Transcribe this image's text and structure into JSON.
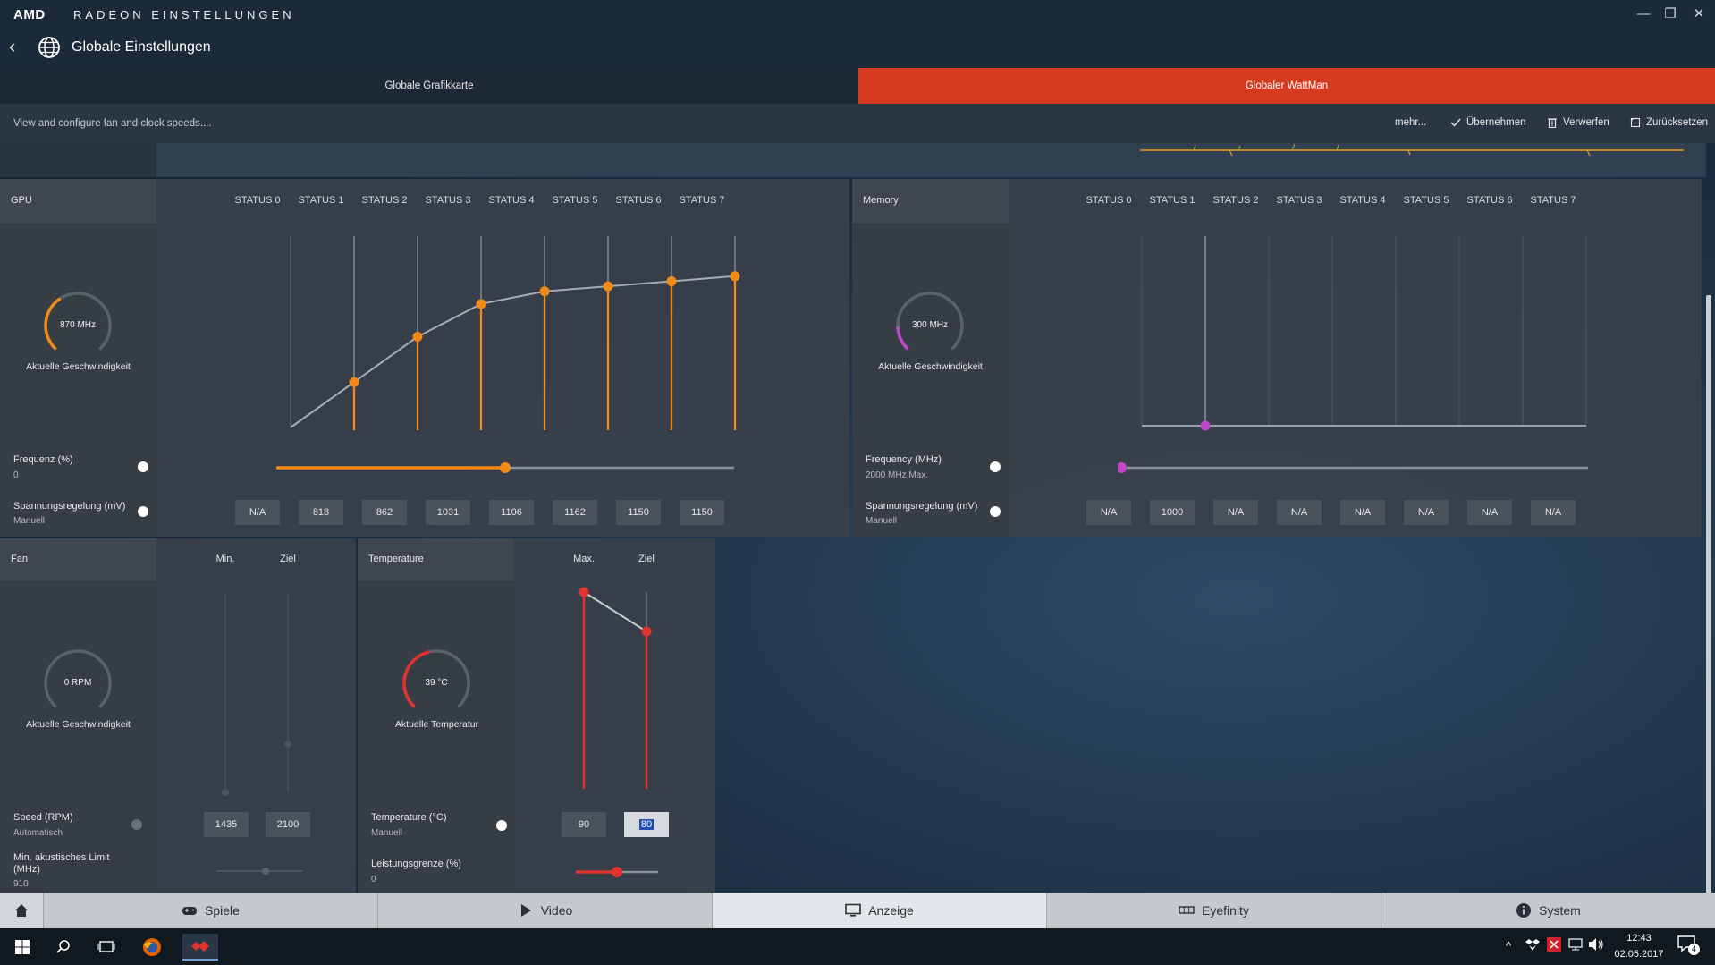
{
  "window": {
    "logo": "AMD",
    "app_name": "RADEON EINSTELLUNGEN",
    "controls": {
      "minimize": "—",
      "restore": "❐",
      "close": "✕"
    }
  },
  "header": {
    "title": "Globale Einstellungen",
    "icons": {
      "back": "chevron-left-icon",
      "globe": "globe-icon"
    }
  },
  "tabs": [
    {
      "label": "Globale Grafikkarte",
      "active": false
    },
    {
      "label": "Globaler WattMan",
      "active": true
    }
  ],
  "actionbar": {
    "description": "View and configure fan and clock speeds....",
    "more": "mehr...",
    "apply": "Übernehmen",
    "discard": "Verwerfen",
    "reset": "Zurücksetzen"
  },
  "gpu": {
    "title": "GPU",
    "states": [
      "STATUS 0",
      "STATUS 1",
      "STATUS 2",
      "STATUS 3",
      "STATUS 4",
      "STATUS 5",
      "STATUS 6",
      "STATUS 7"
    ],
    "gauge": {
      "value": "870 MHz",
      "label": "Aktuelle Geschwindigkeit",
      "fraction": 0.37,
      "color": "#f28a1a"
    },
    "frequency": {
      "label": "Frequenz (%)",
      "value": "0",
      "slider_fraction": 0.5
    },
    "voltage": {
      "label": "Spannungsregelung (mV)",
      "mode": "Manuell",
      "values": [
        "N/A",
        "818",
        "862",
        "1031",
        "1106",
        "1162",
        "1150",
        "1150"
      ]
    },
    "curve_levels": [
      0.0,
      0.18,
      0.36,
      0.49,
      0.54,
      0.56,
      0.58,
      0.6
    ],
    "accent": "#f28a1a"
  },
  "memory": {
    "title": "Memory",
    "states": [
      "STATUS 0",
      "STATUS 1",
      "STATUS 2",
      "STATUS 3",
      "STATUS 4",
      "STATUS 5",
      "STATUS 6",
      "STATUS 7"
    ],
    "gauge": {
      "value": "300 MHz",
      "label": "Aktuelle Geschwindigkeit",
      "fraction": 0.15,
      "color": "#c048c8"
    },
    "frequency": {
      "label": "Frequency (MHz)",
      "value": "2000 MHz Max.",
      "slider_fraction": 0.0
    },
    "voltage": {
      "label": "Spannungsregelung (mV)",
      "mode": "Manuell",
      "values": [
        "N/A",
        "1000",
        "N/A",
        "N/A",
        "N/A",
        "N/A",
        "N/A",
        "N/A"
      ]
    },
    "accent": "#c048c8"
  },
  "fan": {
    "title": "Fan",
    "col_min": "Min.",
    "col_target": "Ziel",
    "gauge": {
      "value": "0 RPM",
      "label": "Aktuelle Geschwindigkeit",
      "fraction": 0.0
    },
    "speed": {
      "label": "Speed (RPM)",
      "mode": "Automatisch",
      "min": "1435",
      "target": "2100"
    },
    "acoustic": {
      "label": "Min. akustisches Limit (MHz)",
      "value": "910"
    }
  },
  "temperature": {
    "title": "Temperature",
    "col_max": "Max.",
    "col_target": "Ziel",
    "gauge": {
      "value": "39 °C",
      "label": "Aktuelle Temperatur",
      "fraction": 0.45,
      "color": "#e0322e"
    },
    "setting": {
      "label": "Temperature (°C)",
      "mode": "Manuell",
      "max": "90",
      "target": "80"
    },
    "power": {
      "label": "Leistungsgrenze (%)",
      "value": "0",
      "slider_fraction": 0.5
    }
  },
  "bottomnav": [
    {
      "label": "Spiele",
      "icon": "gamepad-icon"
    },
    {
      "label": "Video",
      "icon": "play-icon"
    },
    {
      "label": "Anzeige",
      "icon": "monitor-icon",
      "active": true
    },
    {
      "label": "Eyefinity",
      "icon": "eyefinity-icon"
    },
    {
      "label": "System",
      "icon": "info-icon"
    }
  ],
  "taskbar": {
    "time": "12:43",
    "date": "02.05.2017",
    "notifications": "4"
  }
}
